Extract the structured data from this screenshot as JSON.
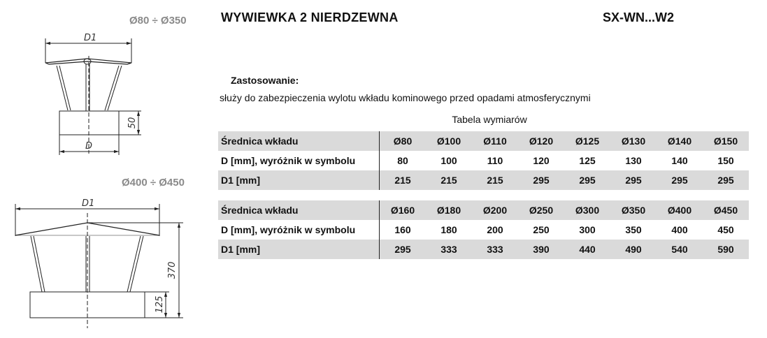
{
  "header": {
    "title": "WYWIEWKA 2 NIERDZEWNA",
    "code": "SX-WN...W2"
  },
  "drawings": {
    "top": {
      "range": "Ø80 ÷ Ø350",
      "d1": "D1",
      "height": "50",
      "d": "D"
    },
    "bottom": {
      "range": "Ø400 ÷ Ø450",
      "d1": "D1",
      "height_total": "370",
      "height_base": "125"
    }
  },
  "application": {
    "label": "Zastosowanie:",
    "text": "służy do zabezpieczenia wylotu wkładu kominowego przed opadami atmosferycznymi"
  },
  "table": {
    "title": "Tabela wymiarów",
    "blocks": [
      {
        "rows": [
          {
            "label": "Średnica wkładu",
            "values": [
              "Ø80",
              "Ø100",
              "Ø110",
              "Ø120",
              "Ø125",
              "Ø130",
              "Ø140",
              "Ø150"
            ]
          },
          {
            "label": "D [mm],  wyróżnik w symbolu",
            "values": [
              "80",
              "100",
              "110",
              "120",
              "125",
              "130",
              "140",
              "150"
            ]
          },
          {
            "label": "D1 [mm]",
            "values": [
              "215",
              "215",
              "215",
              "295",
              "295",
              "295",
              "295",
              "295"
            ]
          }
        ]
      },
      {
        "rows": [
          {
            "label": "Średnica wkładu",
            "values": [
              "Ø160",
              "Ø180",
              "Ø200",
              "Ø250",
              "Ø300",
              "Ø350",
              "Ø400",
              "Ø450"
            ]
          },
          {
            "label": "D [mm],  wyróżnik w symbolu",
            "values": [
              "160",
              "180",
              "200",
              "250",
              "300",
              "350",
              "400",
              "450"
            ]
          },
          {
            "label": "D1 [mm]",
            "values": [
              "295",
              "333",
              "333",
              "390",
              "440",
              "490",
              "540",
              "590"
            ]
          }
        ]
      }
    ]
  }
}
